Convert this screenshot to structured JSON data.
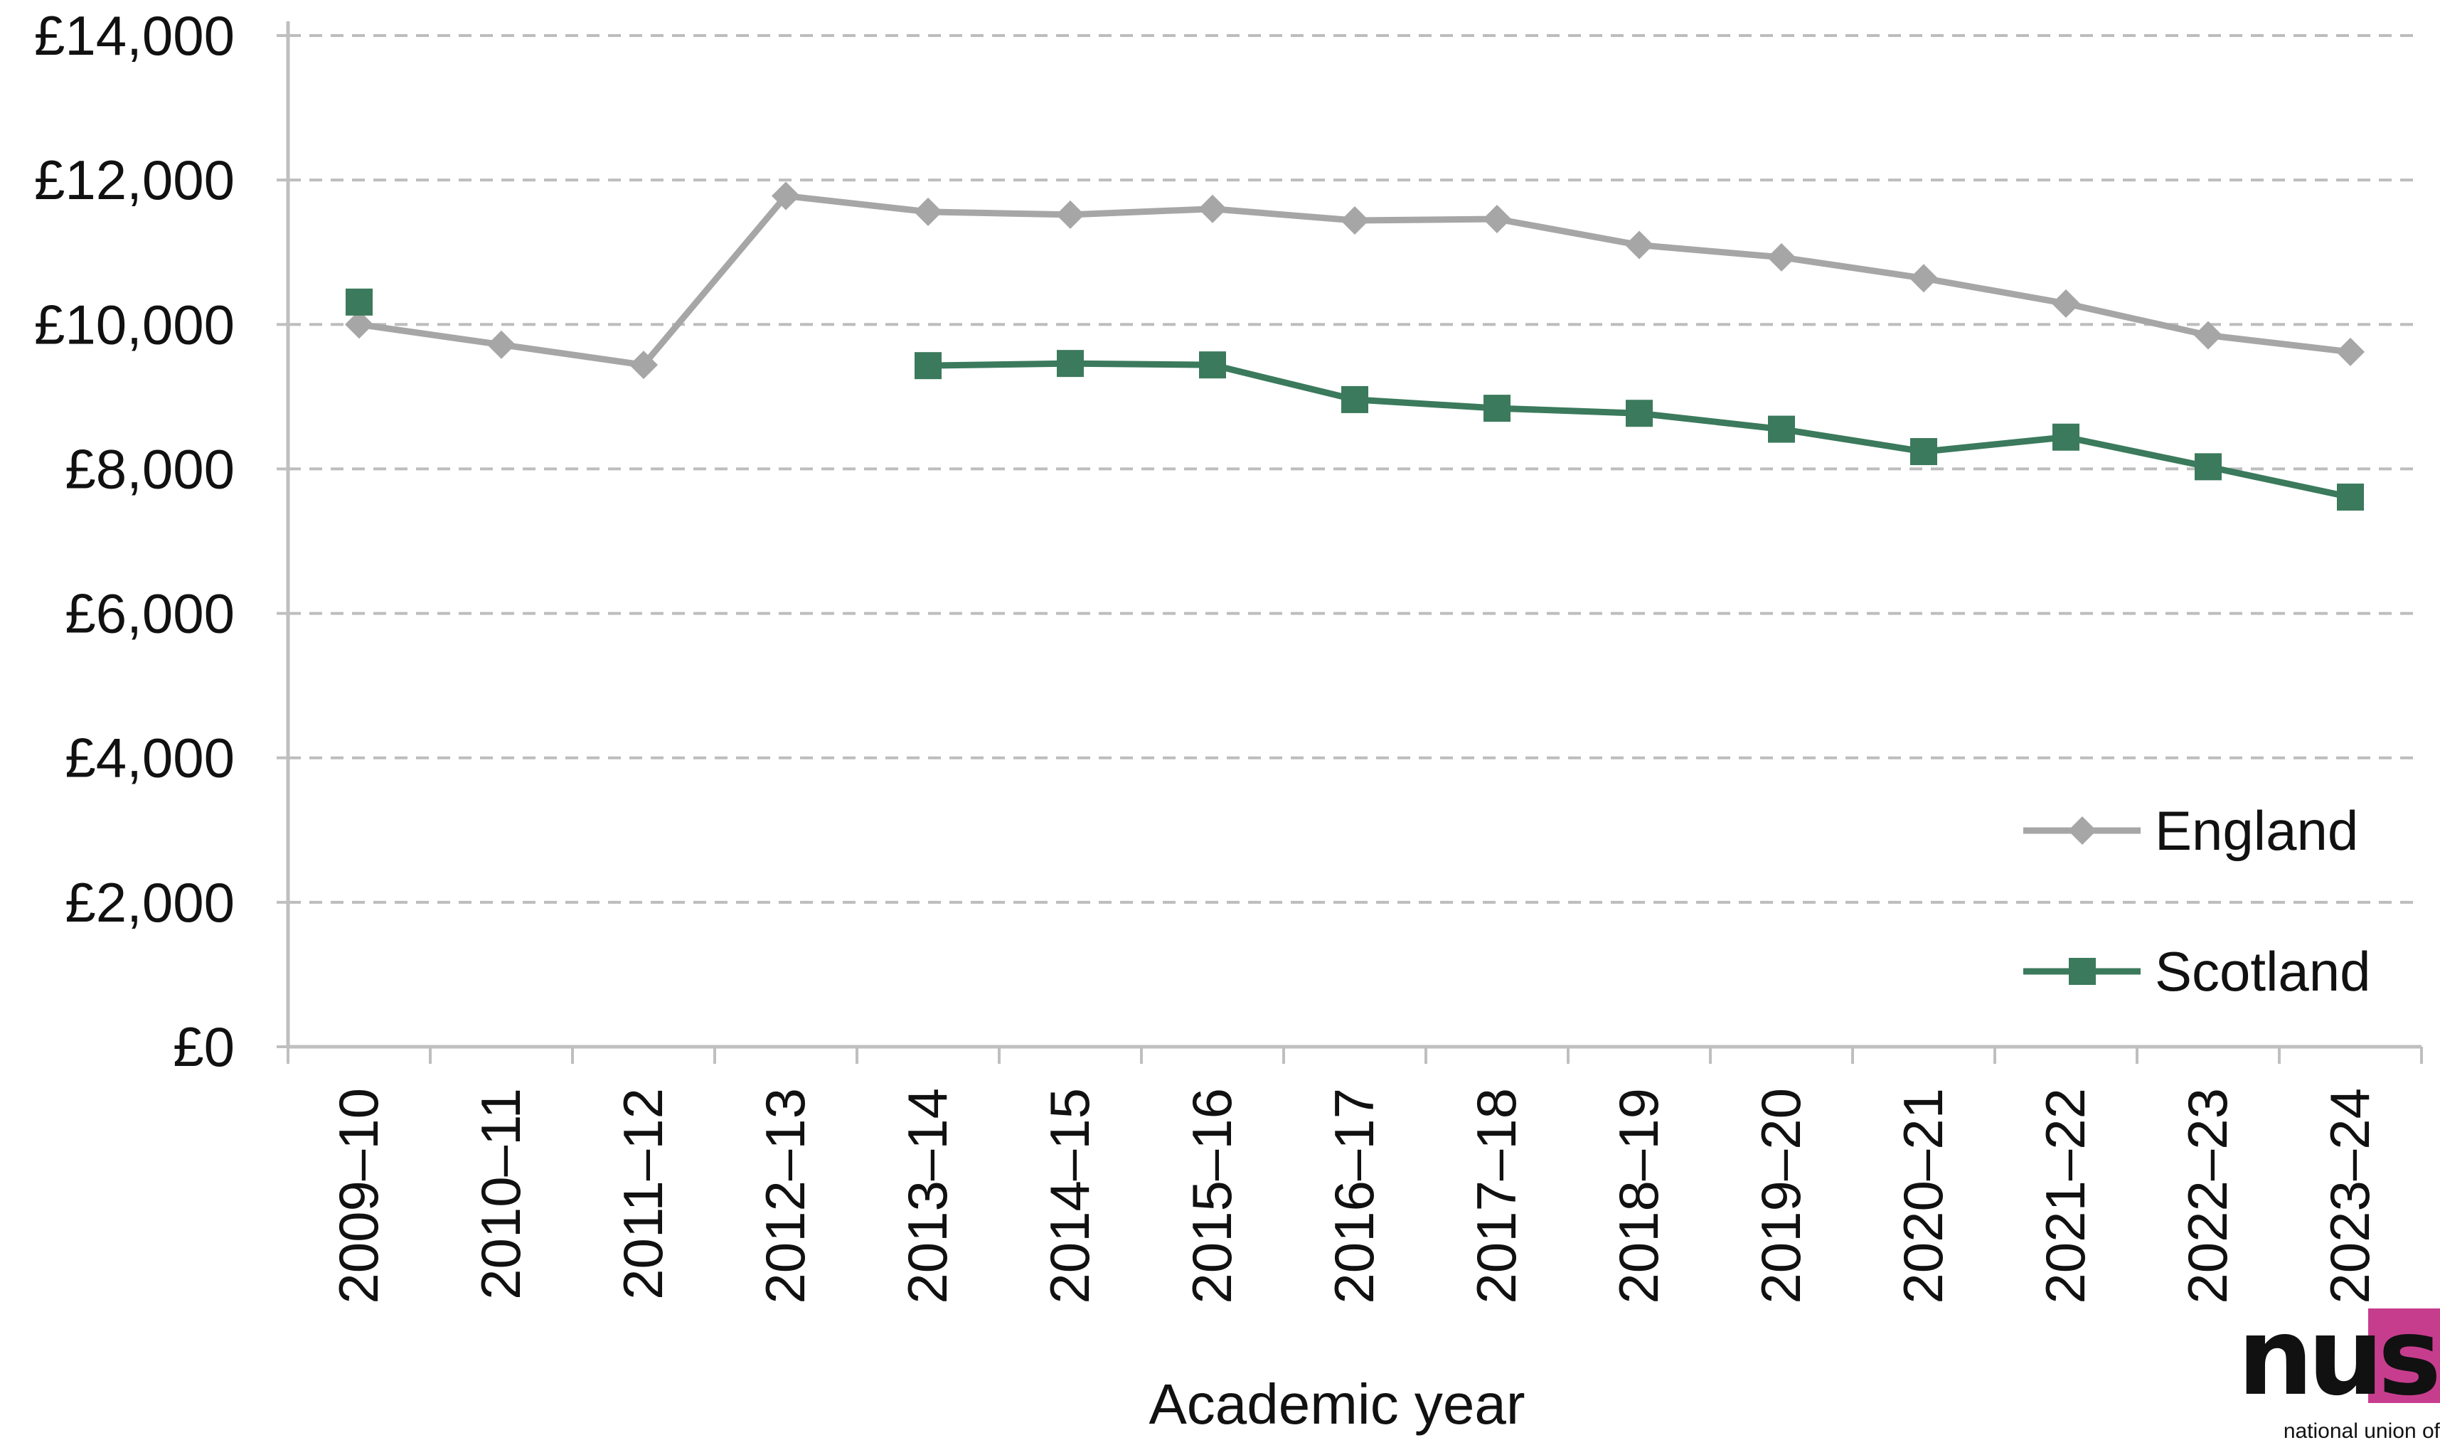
{
  "chart_data": {
    "type": "line",
    "title": "",
    "xlabel": "Academic year",
    "ylabel": "",
    "ylim": [
      0,
      14000
    ],
    "y_ticks": [
      0,
      2000,
      4000,
      6000,
      8000,
      10000,
      12000,
      14000
    ],
    "y_tick_labels": [
      "£0",
      "£2,000",
      "£4,000",
      "£6,000",
      "£8,000",
      "£10,000",
      "£12,000",
      "£14,000"
    ],
    "categories": [
      "2009–10",
      "2010–11",
      "2011–12",
      "2012–13",
      "2013–14",
      "2014–15",
      "2015–16",
      "2016–17",
      "2017–18",
      "2018–19",
      "2019–20",
      "2020–21",
      "2021–22",
      "2022–23",
      "2023–24"
    ],
    "grid": "horizontal dashed",
    "legend_position": "bottom-right",
    "series": [
      {
        "name": "England",
        "marker": "diamond",
        "color": "#a6a6a6",
        "values": [
          10000,
          9720,
          9440,
          11780,
          11560,
          11520,
          11600,
          11440,
          11460,
          11100,
          10930,
          10640,
          10290,
          9850,
          9620
        ]
      },
      {
        "name": "Scotland",
        "marker": "square",
        "color": "#3b7a5c",
        "values": [
          10310,
          null,
          null,
          null,
          9430,
          9460,
          9440,
          8960,
          8840,
          8770,
          8550,
          8240,
          8440,
          8030,
          7610
        ]
      }
    ]
  },
  "logo": {
    "text": "nus",
    "subtitle": "national union of",
    "accent_color": "#c73d8e"
  }
}
